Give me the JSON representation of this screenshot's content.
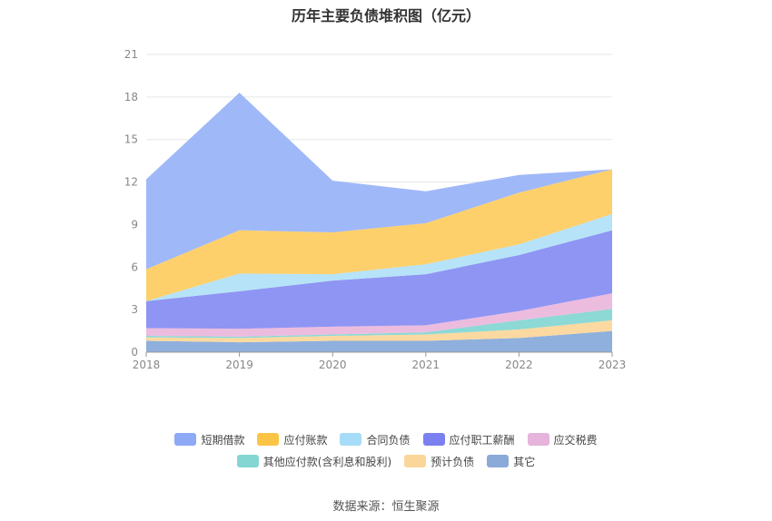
{
  "chart_data": {
    "type": "area",
    "stacked": true,
    "title": "历年主要负债堆积图（亿元）",
    "x": [
      "2018",
      "2019",
      "2020",
      "2021",
      "2022",
      "2023"
    ],
    "ylim": [
      0,
      21
    ],
    "yticks": [
      0,
      3,
      6,
      9,
      12,
      15,
      18,
      21
    ],
    "grid": true,
    "legend_position": "bottom",
    "series": [
      {
        "name": "其它",
        "color": "#8fb0dc",
        "values": [
          0.8,
          0.7,
          0.8,
          0.8,
          1.0,
          1.5
        ]
      },
      {
        "name": "预计负债",
        "color": "#fcd9a0",
        "values": [
          0.25,
          0.3,
          0.35,
          0.45,
          0.6,
          0.75
        ]
      },
      {
        "name": "其他应付款(含利息和股利)",
        "color": "#8cd9d6",
        "values": [
          0.1,
          0.1,
          0.1,
          0.15,
          0.65,
          0.8
        ]
      },
      {
        "name": "应交税费",
        "color": "#ecbcdf",
        "values": [
          0.55,
          0.55,
          0.55,
          0.5,
          0.65,
          1.1
        ]
      },
      {
        "name": "应付职工薪酬",
        "color": "#8f95f3",
        "values": [
          1.9,
          2.65,
          3.25,
          3.6,
          3.95,
          4.45
        ]
      },
      {
        "name": "合同负债",
        "color": "#b6e3f8",
        "values": [
          0.0,
          1.25,
          0.45,
          0.7,
          0.75,
          1.15
        ]
      },
      {
        "name": "应付账款",
        "color": "#fdd06c",
        "values": [
          2.25,
          3.05,
          2.95,
          2.9,
          3.65,
          3.15
        ]
      },
      {
        "name": "短期借款",
        "color": "#9fb8f8",
        "values": [
          6.35,
          9.7,
          3.65,
          2.25,
          1.25,
          0.0
        ]
      }
    ]
  },
  "legend": {
    "row1": [
      {
        "label": "短期借款",
        "color": "#8ea9f5"
      },
      {
        "label": "应付账款",
        "color": "#fcc445"
      },
      {
        "label": "合同负债",
        "color": "#a6dcf7"
      },
      {
        "label": "应付职工薪酬",
        "color": "#7a80f0"
      },
      {
        "label": "应交税费",
        "color": "#e6b4da"
      }
    ],
    "row2": [
      {
        "label": "其他应付款(含利息和股利)",
        "color": "#84d6d2"
      },
      {
        "label": "预计负债",
        "color": "#fbd69b"
      },
      {
        "label": "其它",
        "color": "#8aaad8"
      }
    ]
  },
  "source": "数据来源：恒生聚源"
}
